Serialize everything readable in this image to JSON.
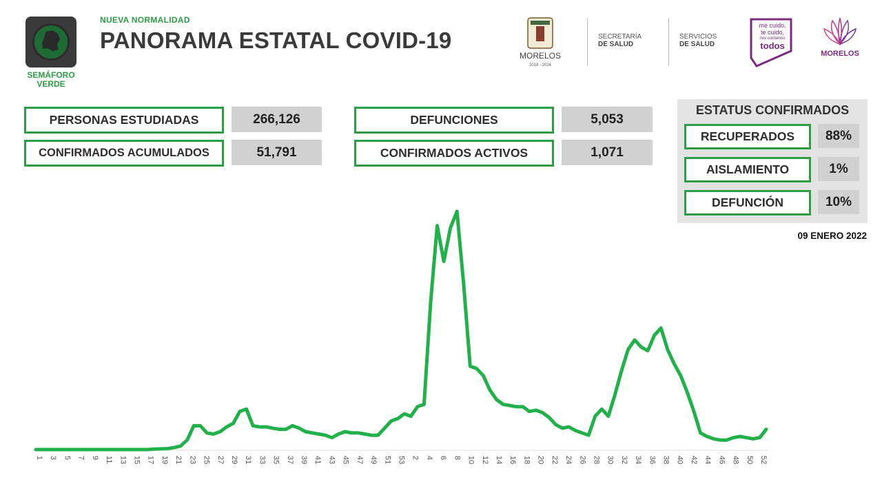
{
  "header": {
    "semaforo_label": "SEMÁFORO VERDE",
    "semaforo_icon": "traffic-light-map-icon",
    "kicker": "NUEVA NORMALIDAD",
    "title": "PANORAMA ESTATAL COVID-19",
    "logos": {
      "morelos_name": "MORELOS",
      "morelos_years": "2018 - 2024",
      "secretaria_line1": "SECRETARÍA",
      "secretaria_line2": "DE SALUD",
      "servicios_line1": "SERVICIOS",
      "servicios_line2": "DE SALUD",
      "campaign_line1": "me cuido,",
      "campaign_line2": "te cuido,",
      "campaign_line3": "nos cuidamos",
      "campaign_line4": "todos",
      "anenecuilco_name": "MORELOS"
    }
  },
  "stats": {
    "personas_label": "PERSONAS ESTUDIADAS",
    "personas_value": "266,126",
    "confirmados_label": "CONFIRMADOS ACUMULADOS",
    "confirmados_value": "51,791",
    "defunciones_label": "DEFUNCIONES",
    "defunciones_value": "5,053",
    "activos_label": "CONFIRMADOS ACTIVOS",
    "activos_value": "1,071"
  },
  "status": {
    "title": "ESTATUS CONFIRMADOS",
    "recuperados_label": "RECUPERADOS",
    "recuperados_value": "88%",
    "aislamiento_label": "AISLAMIENTO",
    "aislamiento_value": "1%",
    "defuncion_label": "DEFUNCIÓN",
    "defuncion_value": "10%"
  },
  "date": "09 ENERO 2022",
  "colors": {
    "accent_green": "#2e9e46",
    "line_green": "#22b04b",
    "value_bg": "#d1d1d1",
    "panel_bg": "#e3e3e3",
    "title_gray": "#3a3a3a",
    "campaign_purple": "#7b2a7f"
  },
  "chart_data": {
    "type": "line",
    "title": "",
    "xlabel": "",
    "ylabel": "",
    "grid": false,
    "legend": "none",
    "x_tick_labels": [
      "1",
      "3",
      "5",
      "7",
      "9",
      "11",
      "13",
      "15",
      "17",
      "19",
      "21",
      "23",
      "25",
      "27",
      "29",
      "31",
      "33",
      "35",
      "37",
      "39",
      "41",
      "43",
      "45",
      "47",
      "49",
      "51",
      "53",
      "2",
      "4",
      "6",
      "8",
      "10",
      "12",
      "14",
      "16",
      "18",
      "20",
      "22",
      "24",
      "26",
      "28",
      "30",
      "32",
      "34",
      "36",
      "38",
      "40",
      "42",
      "44",
      "46",
      "48",
      "50",
      "52"
    ],
    "ylim": [
      0,
      100
    ],
    "series": [
      {
        "values": [
          0,
          0,
          0,
          0,
          0,
          0,
          0,
          0,
          0,
          0,
          0,
          0,
          0,
          0,
          0,
          0,
          0,
          0,
          0.2,
          0.3,
          0.4,
          0.8,
          1.5,
          4,
          10,
          10,
          7,
          6.5,
          7.5,
          9.5,
          11,
          16,
          17,
          10,
          9.5,
          9.5,
          9,
          8.5,
          8.5,
          10,
          9,
          7.5,
          7,
          6.5,
          6,
          5,
          6.5,
          7.5,
          7,
          7,
          6.5,
          6,
          6,
          9,
          12,
          13,
          15,
          14,
          18,
          19,
          62,
          94,
          79,
          93,
          100,
          70,
          35,
          34,
          31,
          25,
          21,
          19,
          18.5,
          18,
          18,
          16,
          16.5,
          15.5,
          13.5,
          10.5,
          9,
          9.5,
          8,
          7,
          6,
          14,
          17,
          14,
          23,
          33,
          42,
          46,
          43,
          41.5,
          48,
          51,
          42,
          36,
          31,
          24,
          16,
          7,
          5.5,
          4.5,
          4,
          4,
          5,
          5.5,
          5,
          4.5,
          5,
          8.5
        ]
      }
    ]
  }
}
